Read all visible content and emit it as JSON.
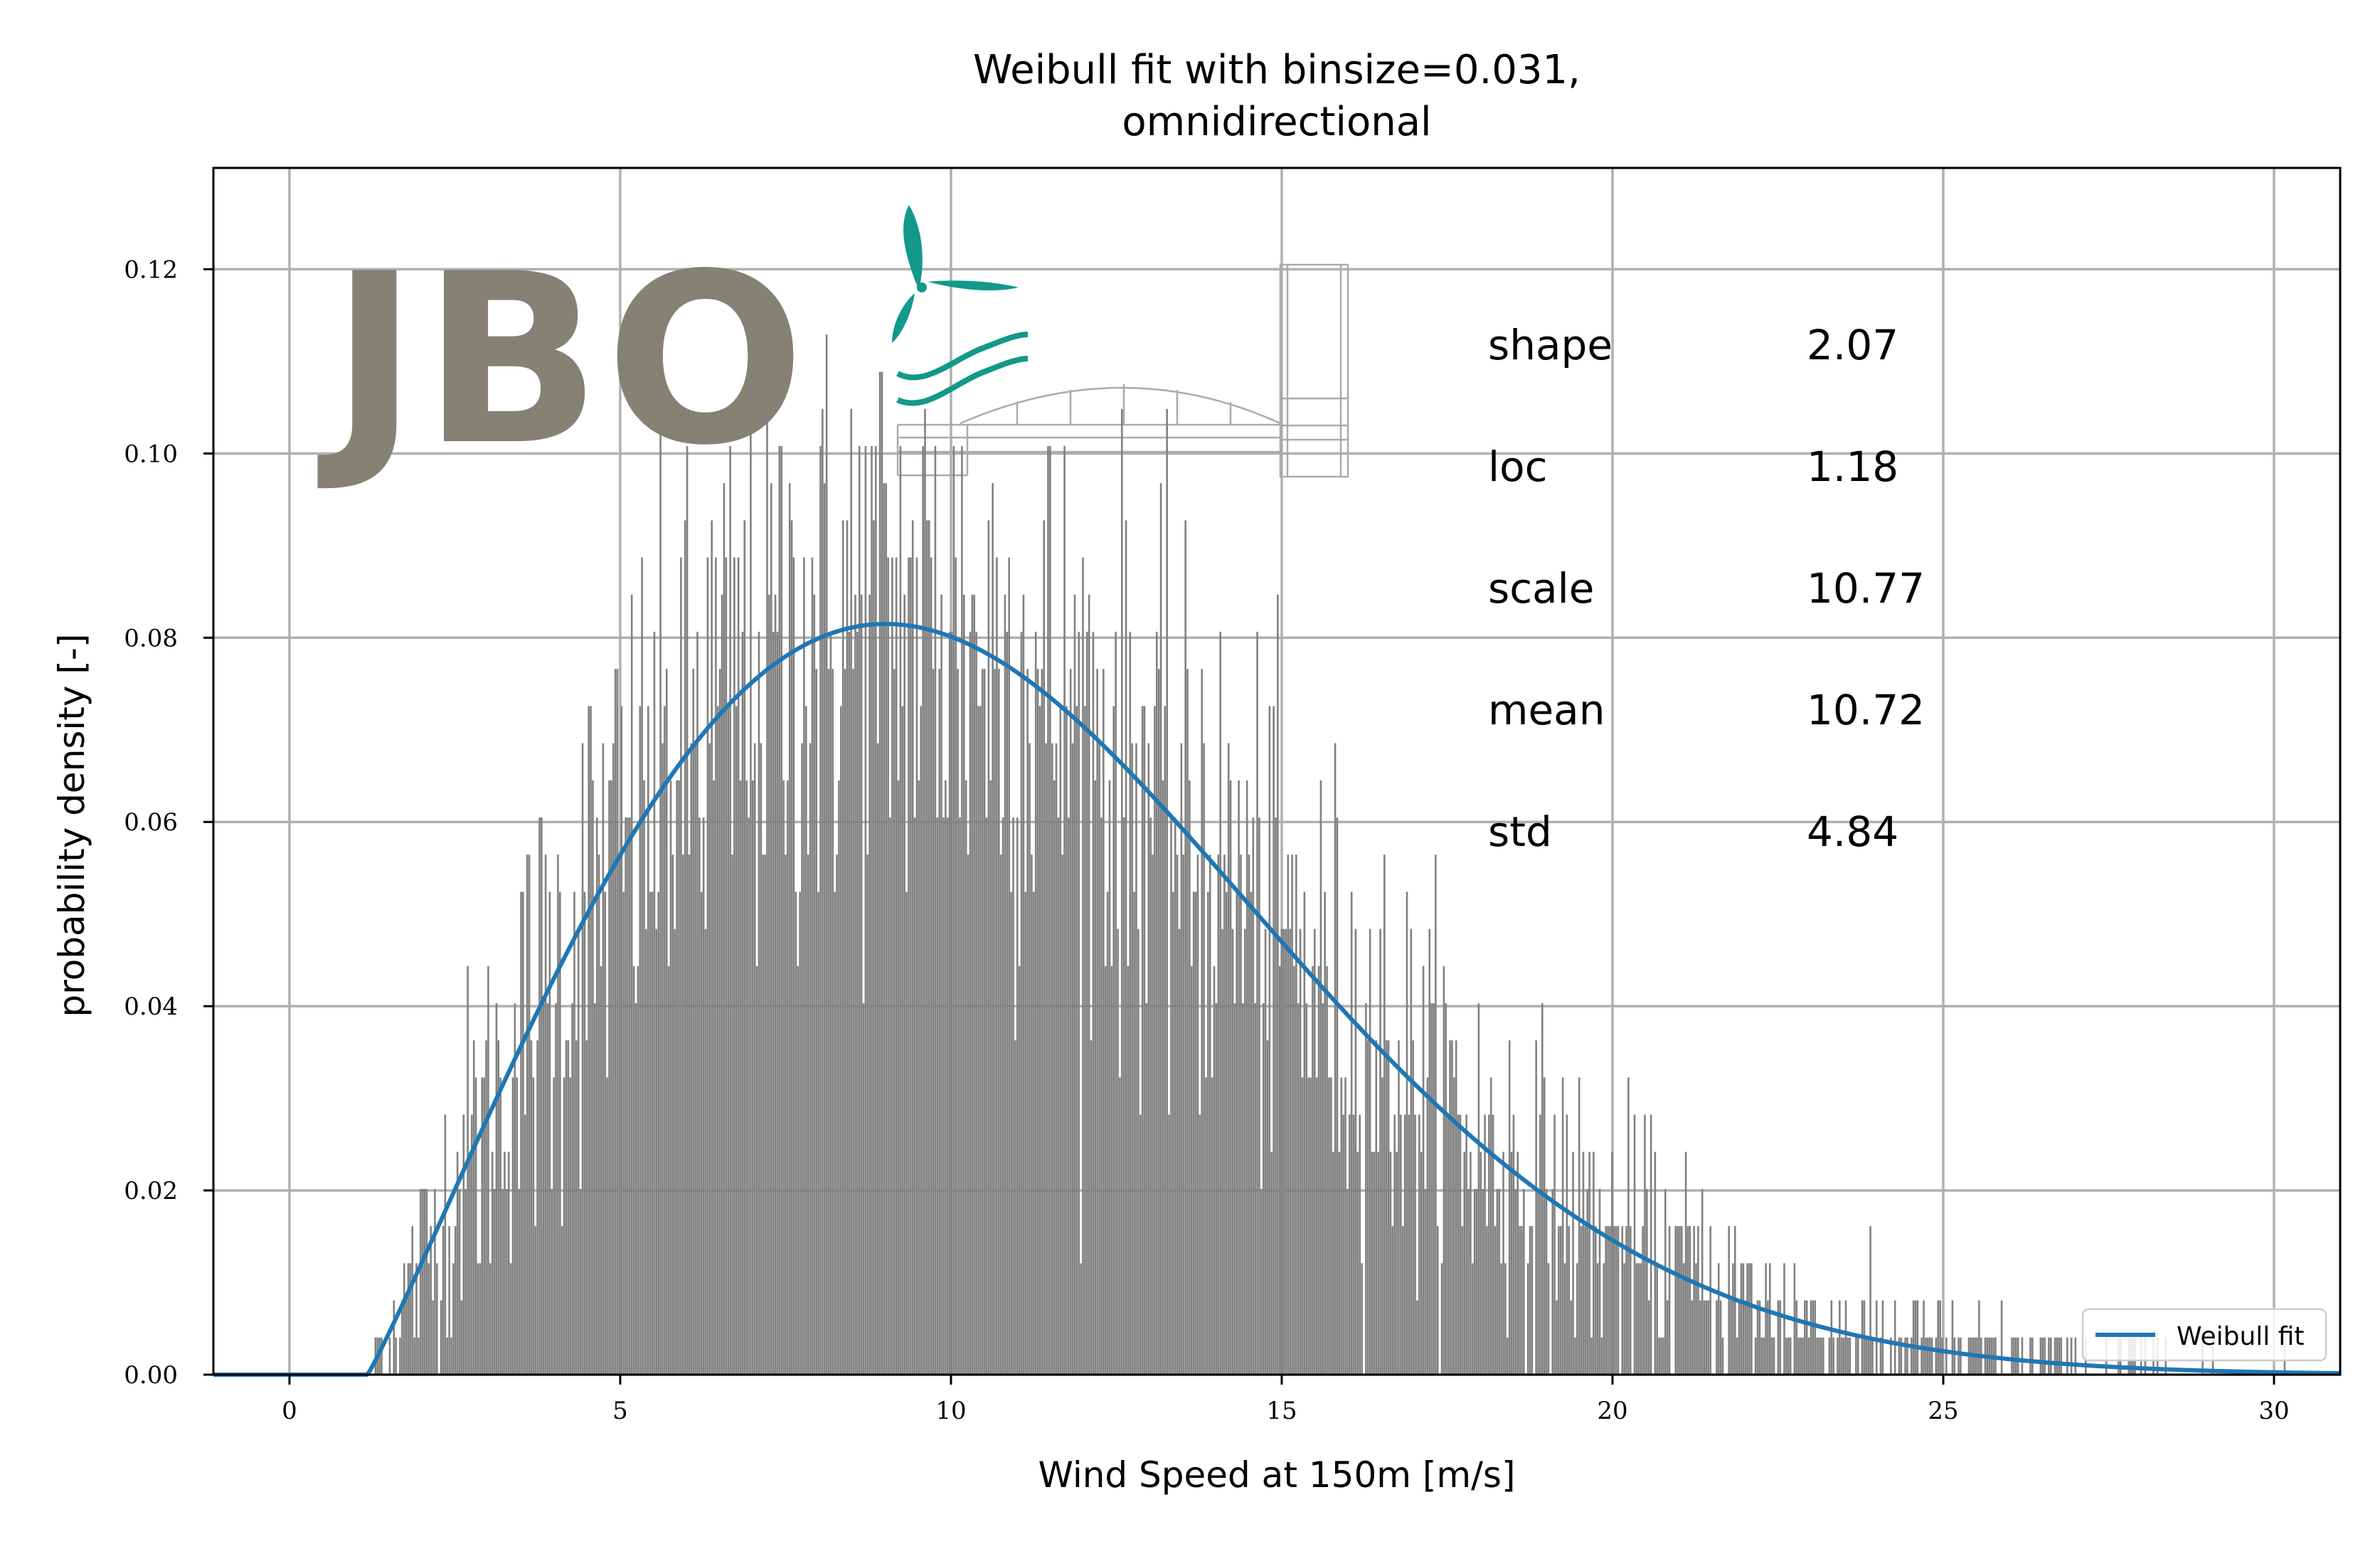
{
  "chart_data": {
    "type": "bar",
    "title_line1": "Weibull fit with binsize=0.031,",
    "title_line2": "omnidirectional",
    "xlabel": "Wind Speed at 150m [m/s]",
    "ylabel": "probability density [-]",
    "xlim": [
      -1.15,
      31.0
    ],
    "ylim": [
      0.0,
      0.131
    ],
    "xticks": [
      0,
      5,
      10,
      15,
      20,
      25,
      30
    ],
    "xtick_labels": [
      "0",
      "5",
      "10",
      "15",
      "20",
      "25",
      "30"
    ],
    "yticks": [
      0.0,
      0.02,
      0.04,
      0.06,
      0.08,
      0.1,
      0.12
    ],
    "ytick_labels": [
      "0.00",
      "0.02",
      "0.04",
      "0.06",
      "0.08",
      "0.10",
      "0.12"
    ],
    "grid": true,
    "legend_position": "bottom-right",
    "histogram": {
      "binsize": 0.031,
      "x_start": 1.1,
      "x_end": 31.0,
      "color": "#808080",
      "envelope": "weibull_min(c=2.07, loc=1.18, scale=10.77) with sampling noise; peak density about 0.081 near 9 m/s, tallest bars about 0.125"
    },
    "series": [
      {
        "name": "Weibull fit",
        "kind": "weibull_min_pdf",
        "shape": 2.07,
        "loc": 1.18,
        "scale": 10.77,
        "color": "#1f77b4"
      }
    ],
    "stats": [
      {
        "label": "shape",
        "value": "2.07"
      },
      {
        "label": "loc",
        "value": "1.18"
      },
      {
        "label": "scale",
        "value": "10.77"
      },
      {
        "label": "mean",
        "value": "10.72"
      },
      {
        "label": "std",
        "value": "4.84"
      }
    ],
    "logo": {
      "text": "JBO",
      "text_color": "#858174",
      "accent_color": "#12998a",
      "line_color": "#aaaaaa"
    },
    "colors": {
      "grid": "#b0b0b0",
      "axes": "#000000",
      "background": "#ffffff"
    }
  }
}
